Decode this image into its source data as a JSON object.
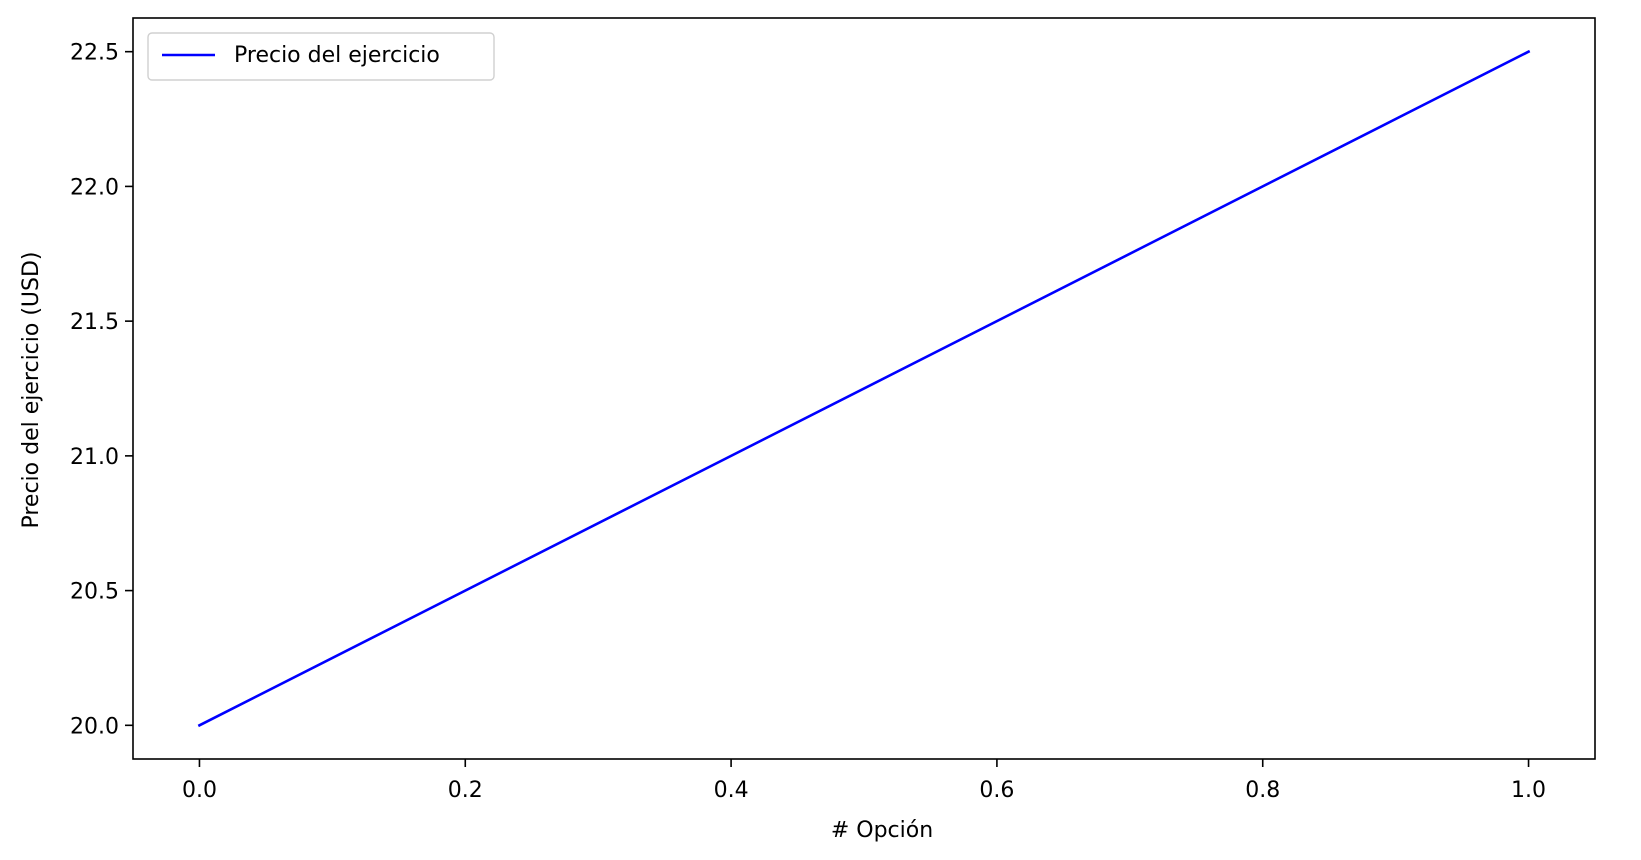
{
  "chart_data": {
    "type": "line",
    "title": "",
    "xlabel": "# Opción",
    "ylabel": "Precio del ejercicio (USD)",
    "xlim": [
      -0.05,
      1.05
    ],
    "ylim": [
      19.875,
      22.625
    ],
    "xticks": [
      0.0,
      0.2,
      0.4,
      0.6,
      0.8,
      1.0
    ],
    "xtick_labels": [
      "0.0",
      "0.2",
      "0.4",
      "0.6",
      "0.8",
      "1.0"
    ],
    "yticks": [
      20.0,
      20.5,
      21.0,
      21.5,
      22.0,
      22.5
    ],
    "ytick_labels": [
      "20.0",
      "20.5",
      "21.0",
      "21.5",
      "22.0",
      "22.5"
    ],
    "grid": false,
    "legend_position": "top-left",
    "series": [
      {
        "name": "Precio del ejercicio",
        "color": "#0000ff",
        "x": [
          0.0,
          1.0
        ],
        "y": [
          20.0,
          22.5
        ]
      }
    ]
  }
}
